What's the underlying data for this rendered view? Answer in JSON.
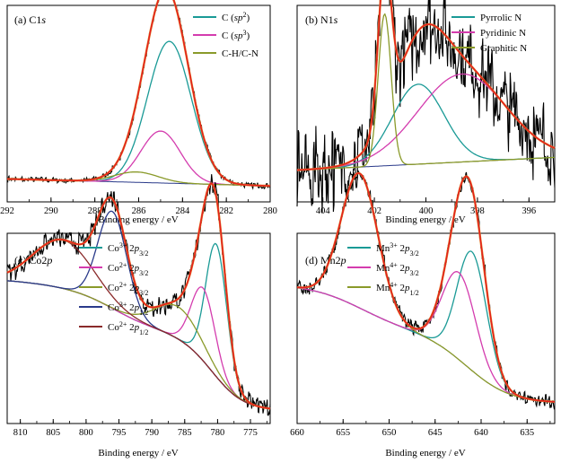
{
  "colors": {
    "teal": "#1a9a96",
    "magenta": "#d43cae",
    "olive": "#8a9a2a",
    "navy": "#2a3a8a",
    "maroon": "#8a2a2a",
    "red": "#e41e1e",
    "orange": "#e08a2a",
    "black": "#000000"
  },
  "chart_data": [
    {
      "type": "line",
      "panel_title": "(a) C1s",
      "xlabel": "Binding energy / eV",
      "xlim": [
        292,
        280
      ],
      "x_ticks": [
        "292",
        "290",
        "288",
        "286",
        "284",
        "282",
        "280"
      ],
      "series": [
        {
          "name": "C (sp2)",
          "color": "teal",
          "peak": {
            "center": 284.6,
            "height": 0.82,
            "width": 1.0
          }
        },
        {
          "name": "C (sp3)",
          "color": "magenta",
          "peak": {
            "center": 285.0,
            "height": 0.3,
            "width": 0.9
          }
        },
        {
          "name": "C-H/C-N",
          "color": "olive",
          "peak": {
            "center": 286.1,
            "height": 0.06,
            "width": 1.0
          }
        }
      ]
    },
    {
      "type": "line",
      "panel_title": "(b) N1s",
      "xlabel": "Binding energy / eV",
      "xlim": [
        405,
        395
      ],
      "x_ticks": [
        "404",
        "402",
        "400",
        "398",
        "396"
      ],
      "series": [
        {
          "name": "Pyrrolic N",
          "color": "teal",
          "peak": {
            "center": 400.3,
            "height": 0.5,
            "width": 1.0
          }
        },
        {
          "name": "Pyridinic N",
          "color": "magenta",
          "peak": {
            "center": 398.6,
            "height": 0.55,
            "width": 1.7
          }
        },
        {
          "name": "Graphitic N",
          "color": "olive",
          "peak": {
            "center": 401.6,
            "height": 0.95,
            "width": 0.25
          }
        }
      ]
    },
    {
      "type": "line",
      "panel_title": "(c) Co2p",
      "xlabel": "Binding energy / eV",
      "xlim": [
        812,
        772
      ],
      "x_ticks": [
        "810",
        "805",
        "800",
        "795",
        "790",
        "785",
        "780",
        "775"
      ],
      "series": [
        {
          "name": "Co3+ 2p3/2",
          "color": "teal",
          "peak": {
            "center": 780.2,
            "height": 0.82,
            "width": 1.6
          }
        },
        {
          "name": "Co2+ 2p3/2",
          "color": "magenta",
          "peak": {
            "center": 782.2,
            "height": 0.45,
            "width": 1.8
          }
        },
        {
          "name": "Co2+ 2p3/2",
          "color": "olive",
          "peak": {
            "center": 786.0,
            "height": 0.2,
            "width": 3.5
          }
        },
        {
          "name": "Co3+ 2p1/2",
          "color": "navy",
          "peak": {
            "center": 796.0,
            "height": 0.6,
            "width": 2.2
          }
        },
        {
          "name": "Co2+ 2p1/2",
          "color": "maroon",
          "peak": {
            "center": 803.5,
            "height": 0.3,
            "width": 4.5
          }
        }
      ]
    },
    {
      "type": "line",
      "panel_title": "(d) Mn2p",
      "xlabel": "Binding energy / eV",
      "xlim": [
        660,
        632
      ],
      "x_ticks": [
        "660",
        "655",
        "650",
        "645",
        "640",
        "635"
      ],
      "series": [
        {
          "name": "Mn3+ 2p3/2",
          "color": "teal",
          "peak": {
            "center": 641.0,
            "height": 0.75,
            "width": 1.6
          }
        },
        {
          "name": "Mn4+ 2p3/2",
          "color": "magenta",
          "peak": {
            "center": 642.4,
            "height": 0.55,
            "width": 1.8
          }
        },
        {
          "name": "Mn4+ 2p1/2",
          "color": "olive",
          "peak": {
            "center": 653.2,
            "height": 0.85,
            "width": 2.0
          }
        }
      ]
    }
  ],
  "legends": {
    "a": [
      {
        "pre": "C (",
        "it": "sp",
        "sup": "2",
        "post": ")"
      },
      {
        "pre": "C (",
        "it": "sp",
        "sup": "3",
        "post": ")"
      },
      {
        "pre": "C-H/C-N"
      }
    ],
    "b": [
      {
        "pre": "Pyrrolic N"
      },
      {
        "pre": "Pyridinic N"
      },
      {
        "pre": "Graphitic N"
      }
    ],
    "c": [
      {
        "pre": "Co",
        "sup": "3+",
        "mid": " 2",
        "it": "p",
        "sub": "3/2"
      },
      {
        "pre": "Co",
        "sup": "2+",
        "mid": " 2",
        "it": "p",
        "sub": "3/2"
      },
      {
        "pre": "Co",
        "sup": "2+",
        "mid": " 2",
        "it": "p",
        "sub": "3/2"
      },
      {
        "pre": "Co",
        "sup": "3+",
        "mid": " 2",
        "it": "p",
        "sub": "1/2"
      },
      {
        "pre": "Co",
        "sup": "2+",
        "mid": " 2",
        "it": "p",
        "sub": "1/2"
      }
    ],
    "d": [
      {
        "pre": "Mn",
        "sup": "3+",
        "mid": " 2",
        "it": "p",
        "sub": "3/2"
      },
      {
        "pre": "Mn",
        "sup": "4+",
        "mid": " 2",
        "it": "p",
        "sub": "3/2"
      },
      {
        "pre": "Mn",
        "sup": "4+",
        "mid": " 2",
        "it": "p",
        "sub": "1/2"
      }
    ]
  }
}
